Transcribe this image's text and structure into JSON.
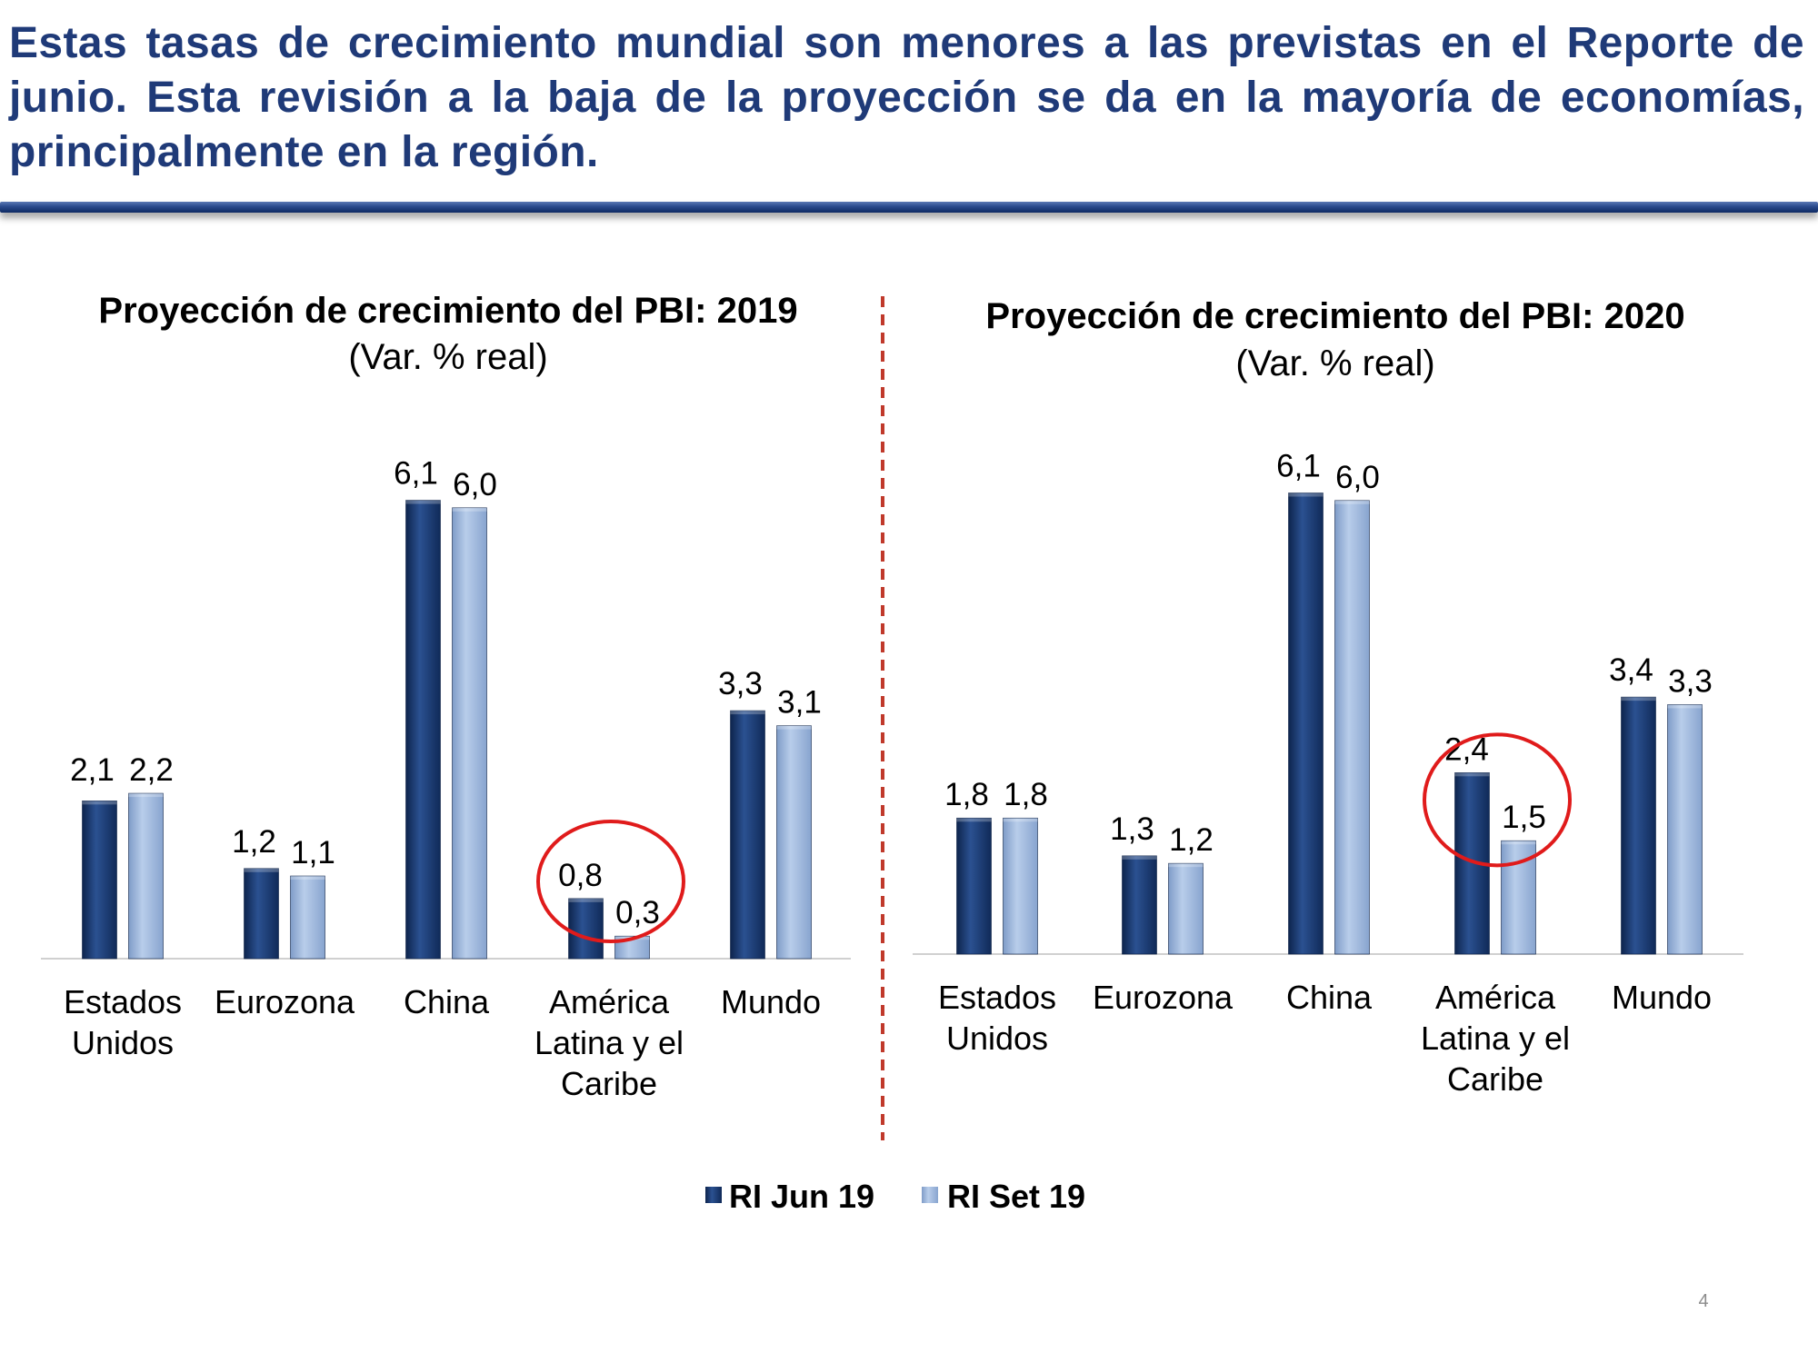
{
  "headline": "Estas tasas de crecimiento mundial son menores a las previstas en el Reporte de junio. Esta revisión a la baja de la proyección se da en la mayoría de economías, principalmente en la región.",
  "page_number": "4",
  "colors": {
    "headline": "#1f3a78",
    "rule": "#2a4a8c",
    "series_dark": "#1f3f74",
    "series_light": "#9db7dc",
    "highlight_circle": "#e01b1b",
    "divider": "#c0392b"
  },
  "legend": [
    {
      "label": "RI Jun 19",
      "color": "#1f3f74"
    },
    {
      "label": "RI Set 19",
      "color": "#9db7dc"
    }
  ],
  "chart_data": [
    {
      "type": "bar",
      "title": "Proyección de crecimiento del PBI: 2019",
      "subtitle": "(Var. % real)",
      "categories": [
        [
          "Estados",
          "Unidos"
        ],
        [
          "Eurozona"
        ],
        [
          "China"
        ],
        [
          "América",
          "Latina y el",
          "Caribe"
        ],
        [
          "Mundo"
        ]
      ],
      "series": [
        {
          "name": "RI Jun 19",
          "values": [
            2.1,
            1.2,
            6.1,
            0.8,
            3.3
          ],
          "labels": [
            "2,1",
            "1,2",
            "6,1",
            "0,8",
            "3,3"
          ]
        },
        {
          "name": "RI Set 19",
          "values": [
            2.2,
            1.1,
            6.0,
            0.3,
            3.1
          ],
          "labels": [
            "2,2",
            "1,1",
            "6,0",
            "0,3",
            "3,1"
          ]
        }
      ],
      "highlight_category": 3,
      "grid": false
    },
    {
      "type": "bar",
      "title": "Proyección de crecimiento del PBI: 2020",
      "subtitle": "(Var. % real)",
      "categories": [
        [
          "Estados",
          "Unidos"
        ],
        [
          "Eurozona"
        ],
        [
          "China"
        ],
        [
          "América",
          "Latina y el",
          "Caribe"
        ],
        [
          "Mundo"
        ]
      ],
      "series": [
        {
          "name": "RI Jun 19",
          "values": [
            1.8,
            1.3,
            6.1,
            2.4,
            3.4
          ],
          "labels": [
            "1,8",
            "1,3",
            "6,1",
            "2,4",
            "3,4"
          ]
        },
        {
          "name": "RI Set 19",
          "values": [
            1.8,
            1.2,
            6.0,
            1.5,
            3.3
          ],
          "labels": [
            "1,8",
            "1,2",
            "6,0",
            "1,5",
            "3,3"
          ]
        }
      ],
      "highlight_category": 3,
      "grid": false
    }
  ]
}
